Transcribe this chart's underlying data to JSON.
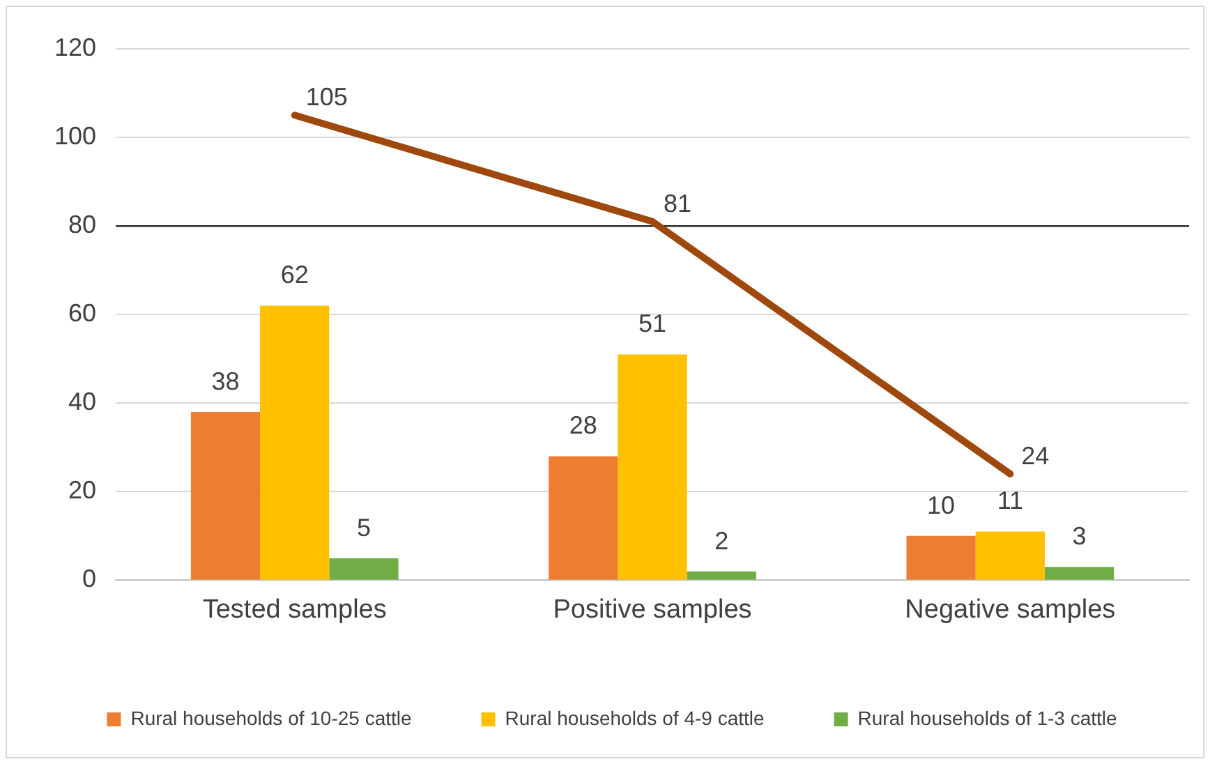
{
  "chart_data": {
    "type": "bar",
    "categories": [
      "Tested samples",
      "Positive samples",
      "Negative samples"
    ],
    "series": [
      {
        "name": "Rural households of 10-25 cattle",
        "color": "#ed7d31",
        "values": [
          38,
          28,
          10
        ]
      },
      {
        "name": "Rural households of 4-9 cattle",
        "color": "#ffc000",
        "values": [
          62,
          51,
          11
        ]
      },
      {
        "name": "Rural households of 1-3 cattle",
        "color": "#70ad47",
        "values": [
          5,
          2,
          3
        ]
      },
      {
        "type": "line",
        "color": "#9e480e",
        "values": [
          105,
          81,
          24
        ]
      }
    ],
    "ylim": [
      0,
      120
    ],
    "yticks": [
      0,
      20,
      40,
      60,
      80,
      100,
      120
    ],
    "grid": "y",
    "legend": "bottom",
    "data_labels": true,
    "marker": "none",
    "ref_lines": [
      {
        "axis": "y",
        "value": 80,
        "color": "#000000"
      }
    ]
  }
}
